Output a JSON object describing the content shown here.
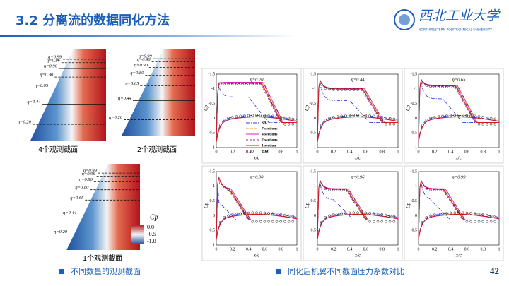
{
  "header": {
    "title": "3.2 分离流的数据同化方法",
    "logo": {
      "name": "西北工业大学",
      "english": "NORTHWESTERN POLYTECHNICAL UNIVERSITY"
    }
  },
  "figure_left": {
    "eta_labels": [
      "η=0.99",
      "η=0.96",
      "η=0.90",
      "η=0.80",
      "η=0.65",
      "η=0.44",
      "η=0.20"
    ],
    "captions": [
      "4个观测截面",
      "2个观测截面",
      "1个观测截面"
    ],
    "colorbar": {
      "label": "Cp",
      "ticks": [
        "0.0",
        "-0.5",
        "-1.0"
      ]
    }
  },
  "figure_right": {
    "panels": [
      "η=0.20",
      "η=0.44",
      "η=0.65",
      "η=0.90",
      "η=0.96",
      "η=0.99"
    ],
    "xlabel": "x/c",
    "ylabel": "Cp",
    "xticks": [
      "0",
      "0.2",
      "0.4",
      "0.6",
      "0.8",
      "1"
    ],
    "yticks": [
      "-1.5",
      "-1",
      "-0.5",
      "0",
      "0.5",
      "1"
    ],
    "legend": [
      "SA",
      "7 sections",
      "4 sections",
      "2 sections",
      "1 section",
      "EXP"
    ]
  },
  "footer": {
    "bullets": [
      "不同数量的观测截面",
      "同化后机翼不同截面压力系数对比"
    ],
    "page": "42"
  }
}
